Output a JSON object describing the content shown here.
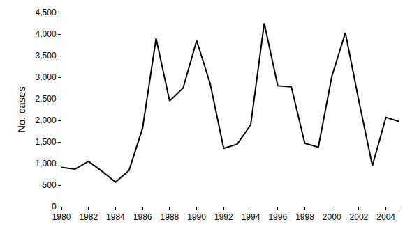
{
  "chart_data": {
    "type": "line",
    "y_label": "No. cases",
    "x": [
      1980,
      1981,
      1982,
      1983,
      1984,
      1985,
      1986,
      1987,
      1988,
      1989,
      1990,
      1991,
      1992,
      1993,
      1994,
      1995,
      1996,
      1997,
      1998,
      1999,
      2000,
      2001,
      2002,
      2003,
      2004,
      2005
    ],
    "values": [
      910,
      870,
      1050,
      820,
      570,
      840,
      1820,
      3900,
      2450,
      2750,
      3850,
      2850,
      1350,
      1450,
      1900,
      4250,
      2800,
      2780,
      1470,
      1380,
      3020,
      4030,
      2450,
      950,
      2070,
      1970
    ],
    "color": "#000000",
    "xlim": [
      1980,
      2005
    ],
    "xticks": [
      1980,
      1982,
      1984,
      1986,
      1988,
      1990,
      1992,
      1994,
      1996,
      1998,
      2000,
      2002,
      2004
    ],
    "ylim": [
      0,
      4500
    ],
    "yticks": [
      0,
      500,
      {
        "value": 1000,
        "label": "1,000"
      },
      {
        "value": 1500,
        "label": "1,500"
      },
      {
        "value": 2000,
        "label": "2,000"
      },
      {
        "value": 2500,
        "label": "2,500"
      },
      {
        "value": 3000,
        "label": "3,000"
      },
      {
        "value": 3500,
        "label": "3,500"
      },
      {
        "value": 4000,
        "label": "4,000"
      },
      {
        "value": 4500,
        "label": "4,500"
      }
    ],
    "grid": false
  }
}
